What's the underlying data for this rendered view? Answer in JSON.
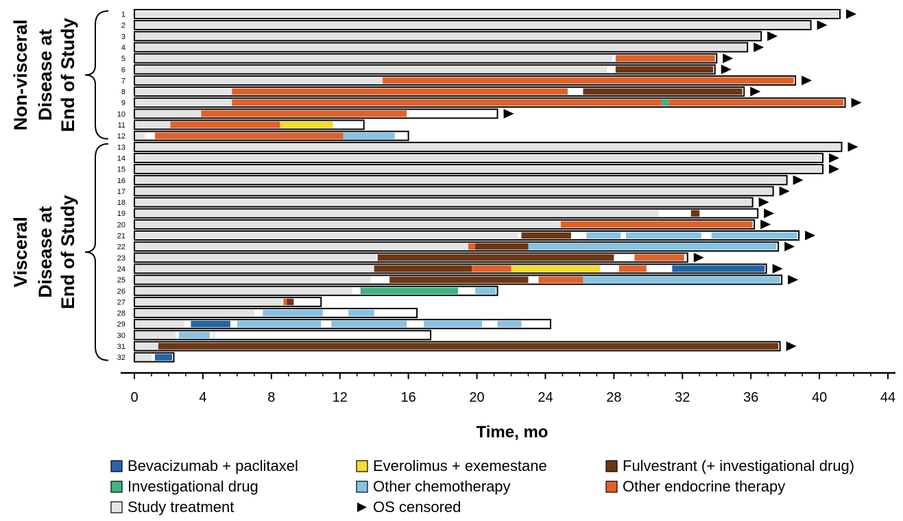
{
  "chart_data": {
    "type": "swimmer",
    "xlabel": "Time, mo",
    "xlim": [
      0,
      44
    ],
    "xticks": [
      0,
      4,
      8,
      12,
      16,
      20,
      24,
      28,
      32,
      36,
      40,
      44
    ],
    "xtick_labels": [
      "0",
      "4",
      "8",
      "12",
      "16",
      "20",
      "24",
      "28",
      "32",
      "36",
      "40",
      "44"
    ],
    "groups": [
      {
        "label_lines": [
          "Non-visceral",
          "Disease at",
          "End of Study"
        ],
        "rows": [
          1,
          12
        ]
      },
      {
        "label_lines": [
          "Visceral",
          "Disease at",
          "End of Study"
        ],
        "rows": [
          13,
          32
        ]
      }
    ],
    "categories": [
      {
        "key": "bev",
        "name": "Bevacizumab + paclitaxel",
        "color": "#2266a8"
      },
      {
        "key": "evx",
        "name": "Everolimus + exemestane",
        "color": "#f3dc2e"
      },
      {
        "key": "ful",
        "name": "Fulvestrant (+ investigational drug)",
        "color": "#6e3613"
      },
      {
        "key": "inv",
        "name": "Investigational drug",
        "color": "#3db482"
      },
      {
        "key": "chemo",
        "name": "Other chemotherapy",
        "color": "#86c3e4"
      },
      {
        "key": "endo",
        "name": "Other endocrine therapy",
        "color": "#e0622a"
      },
      {
        "key": "study",
        "name": "Study treatment",
        "color": "#e3e3e3"
      }
    ],
    "censor_legend": "OS censored",
    "patients": [
      {
        "id": "1",
        "end": 41.2,
        "censored": true,
        "segments": [
          [
            "study",
            0,
            41.2
          ]
        ]
      },
      {
        "id": "2",
        "end": 39.5,
        "censored": true,
        "segments": [
          [
            "study",
            0,
            39.5
          ]
        ]
      },
      {
        "id": "3",
        "end": 36.6,
        "censored": true,
        "segments": [
          [
            "study",
            0,
            36.6
          ]
        ]
      },
      {
        "id": "4",
        "end": 35.8,
        "censored": true,
        "segments": [
          [
            "study",
            0,
            35.8
          ]
        ]
      },
      {
        "id": "5",
        "end": 34.0,
        "censored": true,
        "segments": [
          [
            "study",
            0,
            27.9
          ],
          [
            "endo",
            28.1,
            33.9
          ]
        ]
      },
      {
        "id": "6",
        "end": 33.9,
        "censored": true,
        "segments": [
          [
            "study",
            0,
            27.6
          ],
          [
            "ful",
            28.1,
            33.8
          ]
        ]
      },
      {
        "id": "7",
        "end": 38.6,
        "censored": true,
        "segments": [
          [
            "study",
            0,
            14.5
          ],
          [
            "endo",
            14.5,
            38.5
          ]
        ]
      },
      {
        "id": "8",
        "end": 35.6,
        "censored": true,
        "segments": [
          [
            "study",
            0,
            5.7
          ],
          [
            "endo",
            5.7,
            25.3
          ],
          [
            "ful",
            26.2,
            35.5
          ]
        ]
      },
      {
        "id": "9",
        "end": 41.5,
        "censored": true,
        "segments": [
          [
            "study",
            0,
            5.7
          ],
          [
            "endo",
            5.7,
            30.8
          ],
          [
            "inv",
            30.8,
            31.2
          ],
          [
            "endo",
            31.2,
            41.4
          ]
        ]
      },
      {
        "id": "10",
        "end": 21.2,
        "censored": true,
        "segments": [
          [
            "study",
            0,
            3.9
          ],
          [
            "endo",
            3.9,
            15.9
          ]
        ]
      },
      {
        "id": "11",
        "end": 13.4,
        "censored": false,
        "segments": [
          [
            "study",
            0,
            2.1
          ],
          [
            "endo",
            2.1,
            8.5
          ],
          [
            "evx",
            8.5,
            11.6
          ]
        ]
      },
      {
        "id": "12",
        "end": 16.0,
        "censored": false,
        "segments": [
          [
            "study",
            0,
            0.6
          ],
          [
            "endo",
            1.2,
            12.2
          ],
          [
            "chemo",
            12.2,
            15.2
          ]
        ]
      },
      {
        "id": "13",
        "end": 41.3,
        "censored": true,
        "segments": [
          [
            "study",
            0,
            41.3
          ]
        ]
      },
      {
        "id": "14",
        "end": 40.2,
        "censored": true,
        "segments": [
          [
            "study",
            0,
            40.2
          ]
        ]
      },
      {
        "id": "15",
        "end": 40.2,
        "censored": true,
        "segments": [
          [
            "study",
            0,
            40.2
          ]
        ]
      },
      {
        "id": "16",
        "end": 38.1,
        "censored": true,
        "segments": [
          [
            "study",
            0,
            38.1
          ]
        ]
      },
      {
        "id": "17",
        "end": 37.3,
        "censored": true,
        "segments": [
          [
            "study",
            0,
            37.3
          ]
        ]
      },
      {
        "id": "18",
        "end": 36.1,
        "censored": true,
        "segments": [
          [
            "study",
            0,
            36.1
          ]
        ]
      },
      {
        "id": "19",
        "end": 36.4,
        "censored": true,
        "segments": [
          [
            "study",
            0,
            30.6
          ],
          [
            "ful",
            32.5,
            33.0
          ]
        ]
      },
      {
        "id": "20",
        "end": 36.2,
        "censored": true,
        "segments": [
          [
            "study",
            0,
            24.9
          ],
          [
            "endo",
            24.9,
            36.1
          ]
        ]
      },
      {
        "id": "21",
        "end": 38.8,
        "censored": true,
        "segments": [
          [
            "study",
            0,
            22.4
          ],
          [
            "ful",
            22.6,
            25.5
          ],
          [
            "chemo",
            26.4,
            28.4
          ],
          [
            "chemo",
            28.7,
            33.1
          ],
          [
            "chemo",
            33.7,
            38.7
          ]
        ]
      },
      {
        "id": "22",
        "end": 37.6,
        "censored": true,
        "segments": [
          [
            "study",
            0,
            19.5
          ],
          [
            "endo",
            19.5,
            19.9
          ],
          [
            "ful",
            19.9,
            23.0
          ],
          [
            "chemo",
            23.0,
            37.5
          ]
        ]
      },
      {
        "id": "23",
        "end": 32.3,
        "censored": true,
        "segments": [
          [
            "study",
            0,
            14.1
          ],
          [
            "ful",
            14.2,
            28.0
          ],
          [
            "endo",
            29.2,
            32.1
          ]
        ]
      },
      {
        "id": "24",
        "end": 36.9,
        "censored": true,
        "segments": [
          [
            "study",
            0,
            14.0
          ],
          [
            "ful",
            14.0,
            19.7
          ],
          [
            "endo",
            19.7,
            22.0
          ],
          [
            "evx",
            22.0,
            27.2
          ],
          [
            "endo",
            28.3,
            29.9
          ],
          [
            "bev",
            31.4,
            36.8
          ]
        ]
      },
      {
        "id": "25",
        "end": 37.8,
        "censored": true,
        "segments": [
          [
            "study",
            0,
            13.8
          ],
          [
            "ful",
            14.9,
            23.0
          ],
          [
            "endo",
            23.6,
            26.2
          ],
          [
            "chemo",
            26.2,
            37.7
          ]
        ]
      },
      {
        "id": "26",
        "end": 21.2,
        "censored": false,
        "segments": [
          [
            "study",
            0,
            12.7
          ],
          [
            "inv",
            13.2,
            18.9
          ],
          [
            "chemo",
            19.9,
            21.1
          ]
        ]
      },
      {
        "id": "27",
        "end": 10.9,
        "censored": false,
        "segments": [
          [
            "study",
            0,
            8.6
          ],
          [
            "endo",
            8.7,
            8.9
          ],
          [
            "ful",
            8.9,
            9.3
          ]
        ]
      },
      {
        "id": "28",
        "end": 16.5,
        "censored": false,
        "segments": [
          [
            "study",
            0,
            7.0
          ],
          [
            "chemo",
            7.5,
            11.0
          ],
          [
            "chemo",
            12.5,
            14.0
          ]
        ]
      },
      {
        "id": "29",
        "end": 24.3,
        "censored": false,
        "segments": [
          [
            "study",
            0,
            2.9
          ],
          [
            "bev",
            3.3,
            5.6
          ],
          [
            "chemo",
            6.0,
            10.9
          ],
          [
            "chemo",
            11.5,
            15.9
          ],
          [
            "chemo",
            16.9,
            20.3
          ],
          [
            "chemo",
            21.2,
            22.6
          ]
        ]
      },
      {
        "id": "30",
        "end": 17.3,
        "censored": false,
        "segments": [
          [
            "study",
            0,
            2.4
          ],
          [
            "chemo",
            2.6,
            4.4
          ],
          [
            "study",
            4.6,
            4.7
          ]
        ]
      },
      {
        "id": "31",
        "end": 37.7,
        "censored": true,
        "segments": [
          [
            "study",
            0,
            1.4
          ],
          [
            "ful",
            1.4,
            37.6
          ]
        ]
      },
      {
        "id": "32",
        "end": 2.3,
        "censored": false,
        "segments": [
          [
            "study",
            0,
            1.0
          ],
          [
            "bev",
            1.2,
            2.2
          ]
        ]
      }
    ]
  }
}
